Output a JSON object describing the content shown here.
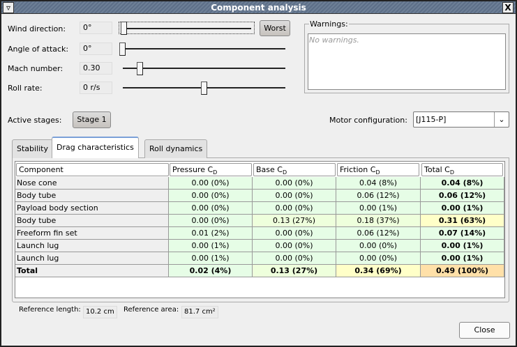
{
  "window": {
    "title": "Component analysis",
    "menu_icon": "triangle-down-icon",
    "close_icon": "close-x-icon"
  },
  "controls": {
    "wind_direction": {
      "label": "Wind direction:",
      "value": "0°",
      "slider_fraction": 0.0
    },
    "worst_button": "Worst",
    "angle_of_attack": {
      "label": "Angle of attack:",
      "value": "0°",
      "slider_fraction": 0.0
    },
    "mach_number": {
      "label": "Mach number:",
      "value": "0.30",
      "slider_fraction": 0.12
    },
    "roll_rate": {
      "label": "Roll rate:",
      "value": "0 r/s",
      "slider_fraction": 0.5
    }
  },
  "warnings": {
    "title": "Warnings:",
    "text": "No warnings."
  },
  "stages": {
    "label": "Active stages:",
    "button": "Stage 1"
  },
  "motor": {
    "label": "Motor configuration:",
    "value": "[J115-P]"
  },
  "tabs": [
    {
      "label": "Stability"
    },
    {
      "label": "Drag characteristics",
      "active": true
    },
    {
      "label": "Roll dynamics"
    }
  ],
  "table": {
    "headers": [
      {
        "main": "Component",
        "sub": ""
      },
      {
        "main": "Pressure C",
        "sub": "D"
      },
      {
        "main": "Base C",
        "sub": "D"
      },
      {
        "main": "Friction C",
        "sub": "D"
      },
      {
        "main": "Total C",
        "sub": "D"
      }
    ],
    "rows": [
      {
        "name": "Nose cone",
        "cells": [
          "0.00 (0%)",
          "0.00 (0%)",
          "0.04 (8%)",
          "0.04 (8%)"
        ]
      },
      {
        "name": "Body tube",
        "cells": [
          "0.00 (0%)",
          "0.00 (0%)",
          "0.06 (12%)",
          "0.06 (12%)"
        ]
      },
      {
        "name": "Payload body section",
        "cells": [
          "0.00 (0%)",
          "0.00 (0%)",
          "0.00 (1%)",
          "0.00 (1%)"
        ]
      },
      {
        "name": "Body tube",
        "cells": [
          "0.00 (0%)",
          "0.13 (27%)",
          "0.18 (37%)",
          "0.31 (63%)"
        ]
      },
      {
        "name": "Freeform fin set",
        "cells": [
          "0.01 (2%)",
          "0.00 (0%)",
          "0.06 (12%)",
          "0.07 (14%)"
        ]
      },
      {
        "name": "Launch lug",
        "cells": [
          "0.00 (1%)",
          "0.00 (0%)",
          "0.00 (0%)",
          "0.00 (1%)"
        ]
      },
      {
        "name": "Launch lug",
        "cells": [
          "0.00 (1%)",
          "0.00 (0%)",
          "0.00 (0%)",
          "0.00 (1%)"
        ]
      },
      {
        "name": "Total",
        "cells": [
          "0.02 (4%)",
          "0.13 (27%)",
          "0.34 (69%)",
          "0.49 (100%)"
        ]
      }
    ],
    "colors": {
      "low": "#e6fde6",
      "mid": "#eeffdc",
      "high": "#ffffc8",
      "max": "#ffe0a8"
    }
  },
  "reference": {
    "length_label": "Reference length:",
    "length_value": "10.2 cm",
    "area_label": "Reference area:",
    "area_value": "81.7 cm²"
  },
  "close_button": "Close"
}
